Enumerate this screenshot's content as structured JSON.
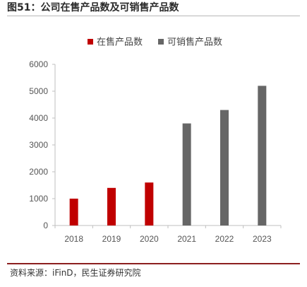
{
  "figure": {
    "title": "图51：公司在售产品数及可销售产品数",
    "source": "资料来源：iFinD，民生证券研究院"
  },
  "chart_data": {
    "type": "bar",
    "categories": [
      "2018",
      "2019",
      "2020",
      "2021",
      "2022",
      "2023"
    ],
    "series": [
      {
        "name": "在售产品数",
        "color": "#c00000",
        "values": [
          1000,
          1400,
          1600,
          null,
          null,
          null
        ]
      },
      {
        "name": "可销售产品数",
        "color": "#666666",
        "values": [
          null,
          null,
          null,
          3800,
          4300,
          5200
        ]
      }
    ],
    "ylim": [
      0,
      6000
    ],
    "yticks": [
      0,
      1000,
      2000,
      3000,
      4000,
      5000,
      6000
    ],
    "grid": false,
    "legend": "top-center"
  }
}
